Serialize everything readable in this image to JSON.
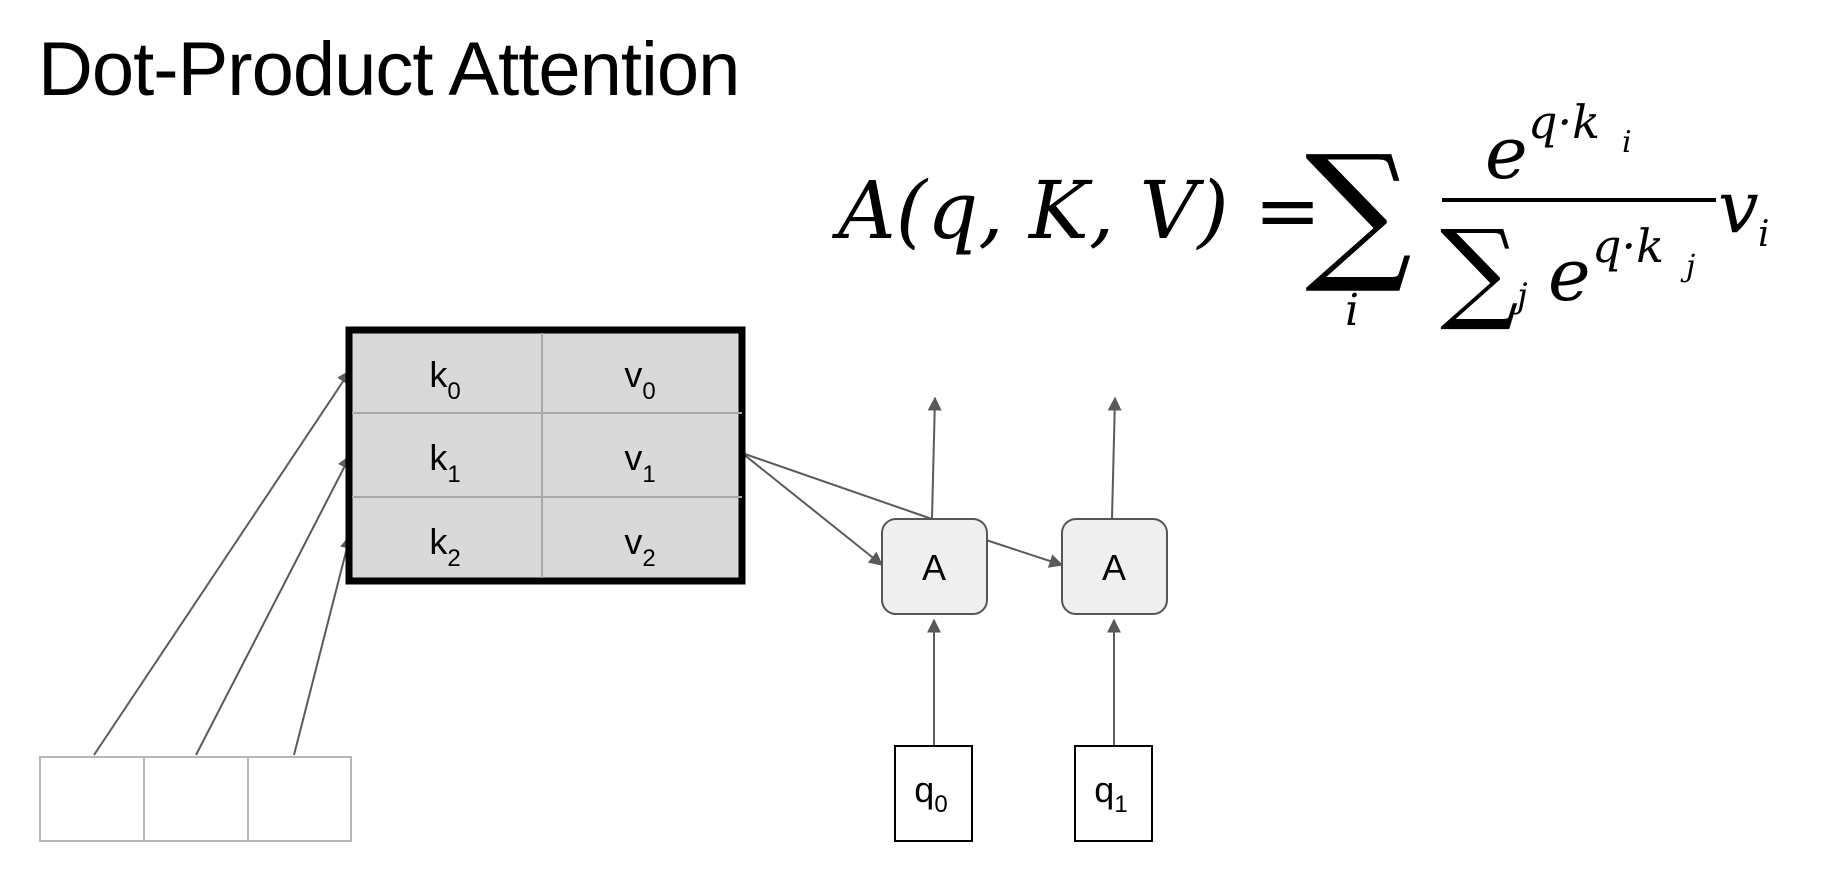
{
  "title": "Dot-Product Attention",
  "formula": {
    "lhs": "A(q, K, V) =",
    "sum_symbol": "∑",
    "sum_index": "i",
    "numerator_base": "e",
    "numerator_exp": "q·k",
    "numerator_exp_sub": "i",
    "denominator_sum": "∑",
    "denominator_sum_sub": "j",
    "denominator_base": "e",
    "denominator_exp": "q·k",
    "denominator_exp_sub": "j",
    "value": "v",
    "value_sub": "i"
  },
  "memory": {
    "rows": [
      {
        "key": "k",
        "key_sub": "0",
        "value": "v",
        "value_sub": "0"
      },
      {
        "key": "k",
        "key_sub": "1",
        "value": "v",
        "value_sub": "1"
      },
      {
        "key": "k",
        "key_sub": "2",
        "value": "v",
        "value_sub": "2"
      }
    ]
  },
  "attention_nodes": [
    {
      "label": "A"
    },
    {
      "label": "A"
    }
  ],
  "queries": [
    {
      "label": "q",
      "sub": "0"
    },
    {
      "label": "q",
      "sub": "1"
    }
  ],
  "colors": {
    "memory_fill": "#d9d9d9",
    "memory_border": "#000000",
    "node_fill": "#efefef",
    "node_border": "#555555",
    "line": "#5a5a5a",
    "input_border": "#b7b7b7"
  }
}
